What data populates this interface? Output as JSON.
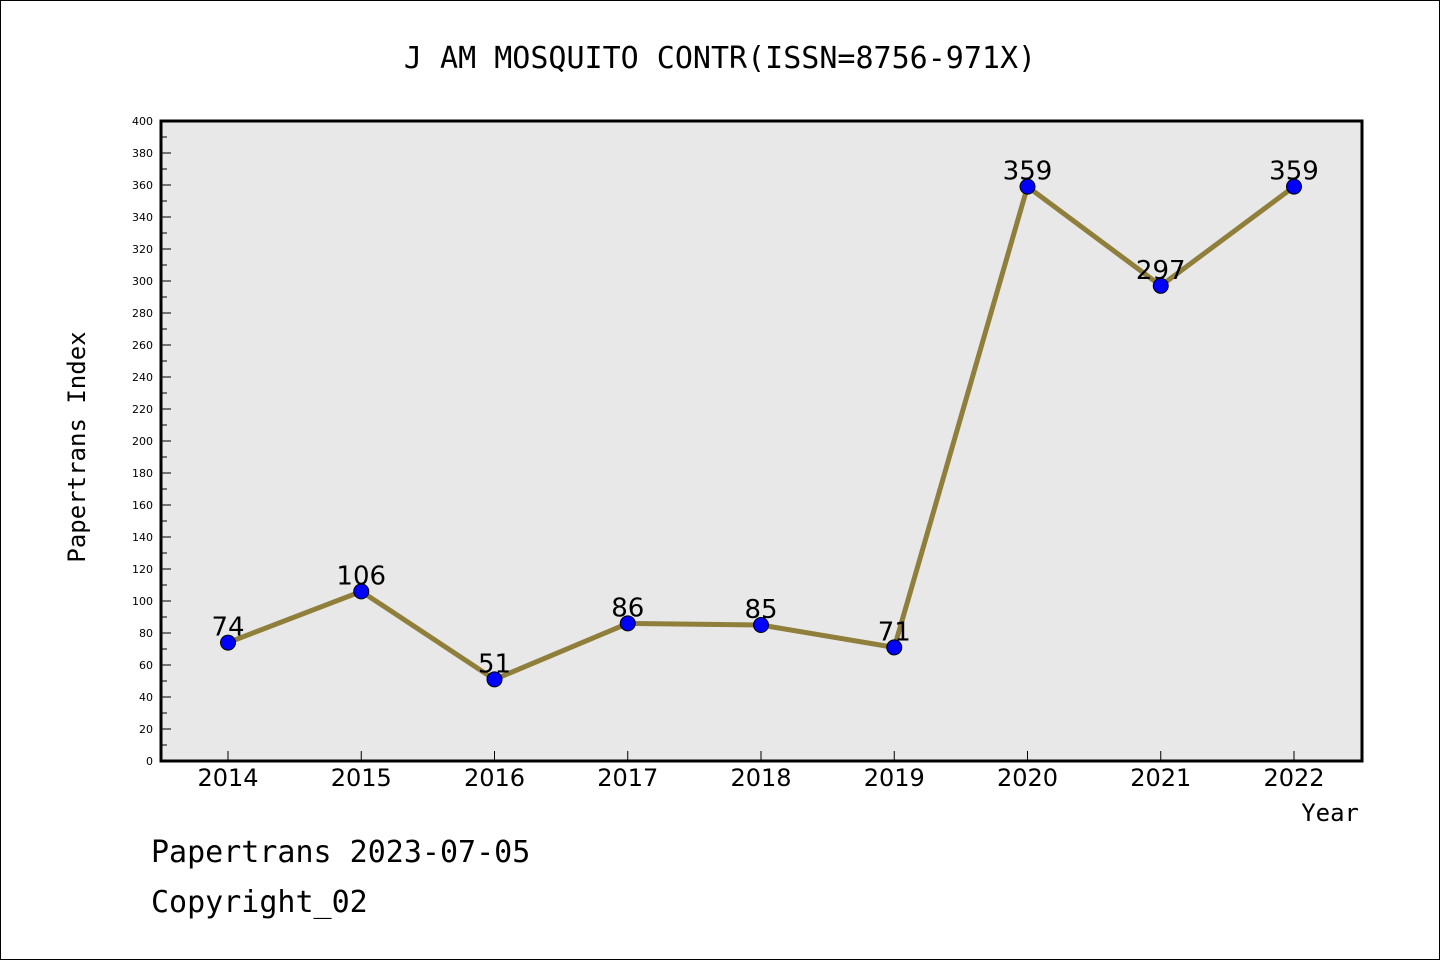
{
  "chart_data": {
    "type": "line",
    "title": "J AM MOSQUITO CONTR(ISSN=8756-971X)",
    "xlabel": "Year",
    "ylabel": "Papertrans Index",
    "categories": [
      "2014",
      "2015",
      "2016",
      "2017",
      "2018",
      "2019",
      "2020",
      "2021",
      "2022"
    ],
    "series": [
      {
        "values": [
          74,
          106,
          51,
          86,
          85,
          71,
          359,
          297,
          359
        ]
      }
    ],
    "data_labels": [
      "74",
      "106",
      "51",
      "86",
      "85",
      "71",
      "359",
      "297",
      "359"
    ],
    "ylim": [
      0,
      400
    ],
    "y_ticks": [
      "0",
      "20",
      "40",
      "60",
      "80",
      "100",
      "120",
      "140",
      "160",
      "180",
      "200",
      "220",
      "240",
      "260",
      "280",
      "300",
      "320",
      "340",
      "360",
      "380",
      "400"
    ],
    "grid": false,
    "legend": "none",
    "colors": {
      "plot_background": "#e8e8e8",
      "line": "#8f7f3a",
      "marker": "#0000ff"
    }
  },
  "footer": {
    "line1": "Papertrans 2023-07-05",
    "line2": "Copyright_02"
  }
}
